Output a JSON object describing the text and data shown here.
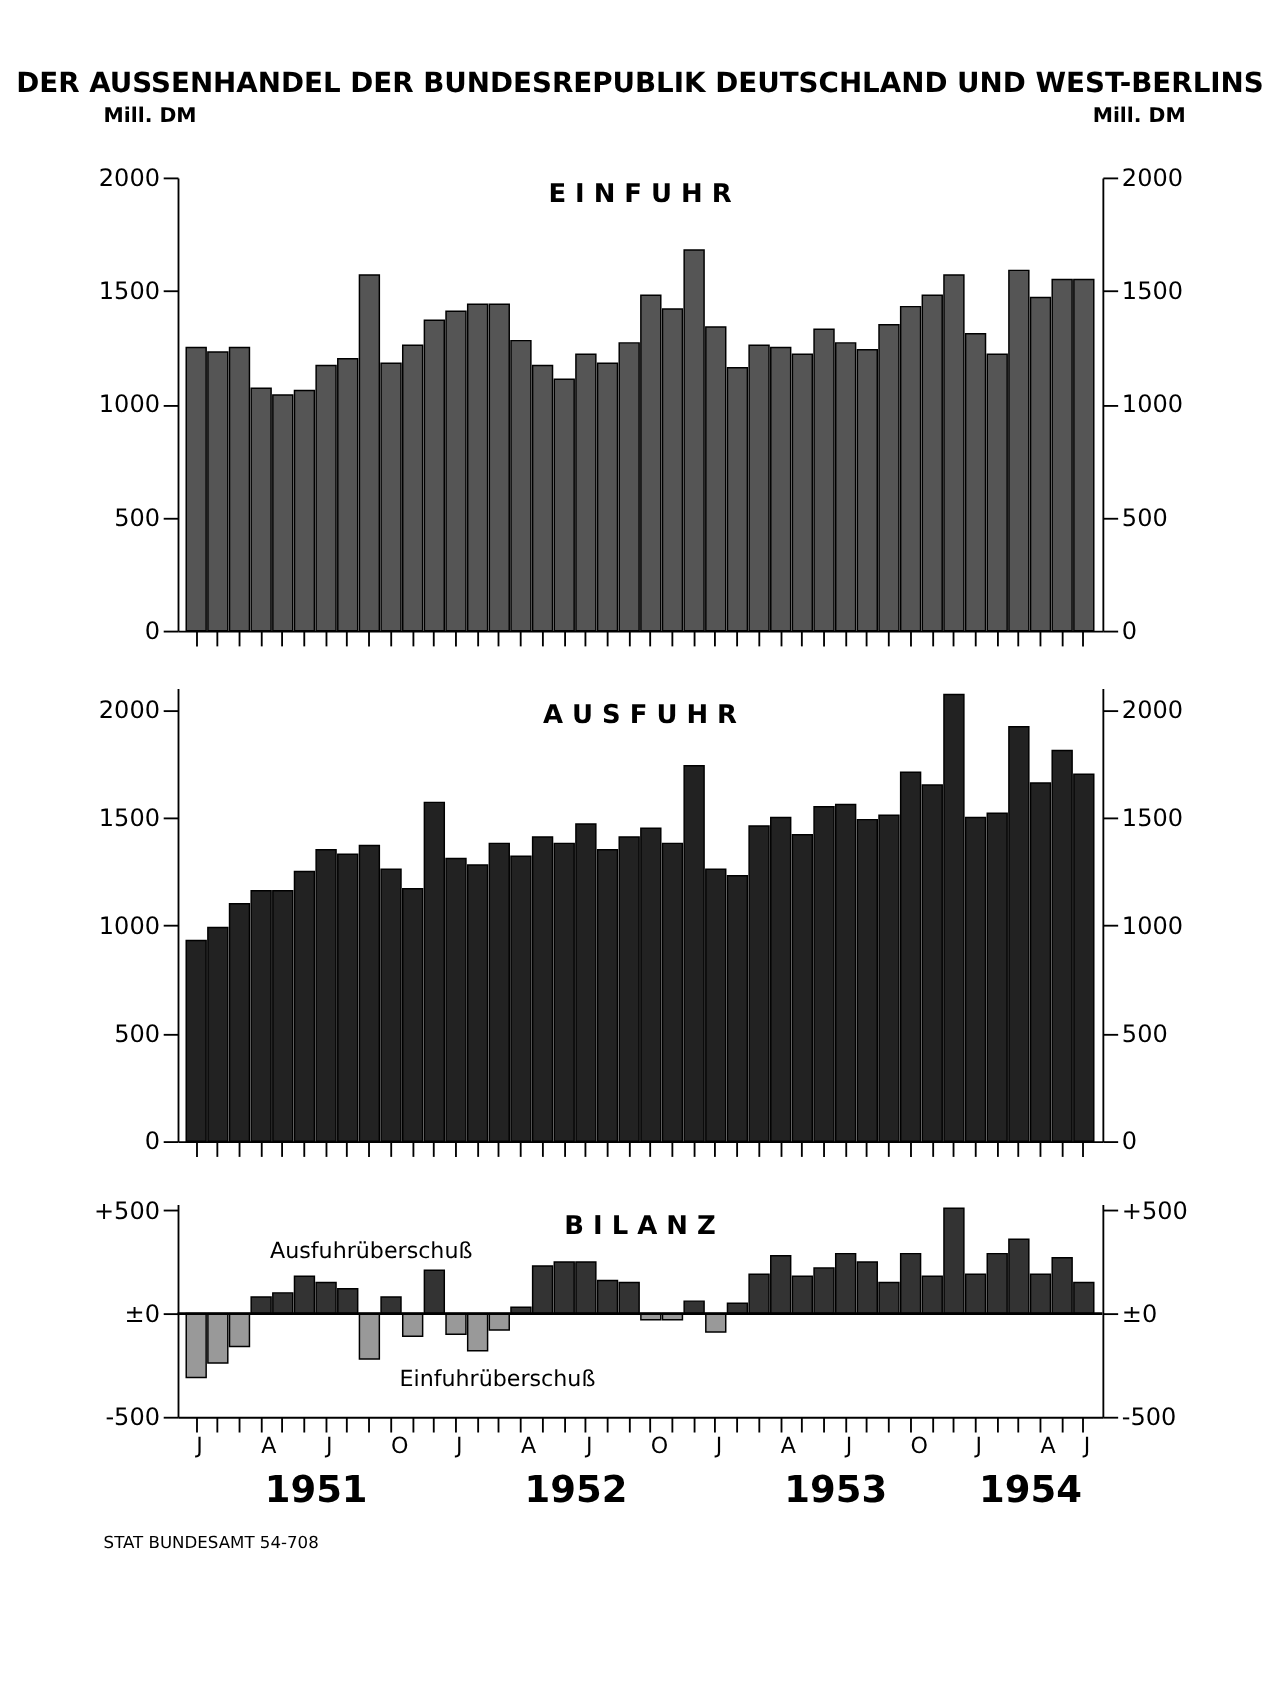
{
  "chart_data": [
    {
      "type": "bar",
      "title": "DER AUSSENHANDEL DER BUNDESREPUBLIK DEUTSCHLAND UND WEST-BERLINS",
      "subtitle": "E I N F U H R",
      "ylabel": "Mill. DM",
      "y2label": "Mill. DM",
      "categories": [
        null,
        null,
        null,
        null,
        null,
        null,
        null,
        null,
        null,
        null,
        null,
        null,
        null,
        null,
        null,
        null,
        null,
        null,
        null,
        null,
        null,
        null,
        null,
        null,
        null,
        null,
        null,
        null,
        null,
        null,
        null,
        null,
        null,
        null,
        null,
        null,
        null,
        null,
        null,
        null,
        null,
        null
      ],
      "series": [
        {
          "color": "#555555",
          "values": [
            1250,
            1230,
            1250,
            1070,
            1040,
            1060,
            1170,
            1200,
            1570,
            1180,
            1260,
            1370,
            1410,
            1440,
            1440,
            1280,
            1170,
            1110,
            1220,
            1180,
            1270,
            1480,
            1420,
            1680,
            1340,
            1160,
            1260,
            1250,
            1220,
            1330,
            1270,
            1240,
            1350,
            1430,
            1480,
            1570,
            1310,
            1220,
            1590,
            1470,
            1550,
            1550
          ]
        }
      ],
      "ylim": [
        0,
        2000
      ],
      "yticks": [
        0,
        500,
        1000,
        1500,
        2000
      ],
      "y2lim": [
        0,
        2000
      ],
      "y2ticks": [
        0,
        500,
        1000,
        1500,
        2000
      ],
      "tick_labels": "y"
    },
    {
      "type": "bar",
      "title": "A U S F U H R",
      "categories": [
        null,
        null,
        null,
        null,
        null,
        null,
        null,
        null,
        null,
        null,
        null,
        null,
        null,
        null,
        null,
        null,
        null,
        null,
        null,
        null,
        null,
        null,
        null,
        null,
        null,
        null,
        null,
        null,
        null,
        null,
        null,
        null,
        null,
        null,
        null,
        null,
        null,
        null,
        null,
        null,
        null,
        null
      ],
      "series": [
        {
          "color": "#222222",
          "values": [
            930,
            990,
            1100,
            1160,
            1160,
            1250,
            1350,
            1330,
            1370,
            1260,
            1170,
            1570,
            1310,
            1280,
            1380,
            1320,
            1410,
            1380,
            1470,
            1350,
            1410,
            1450,
            1380,
            1740,
            1260,
            1230,
            1460,
            1500,
            1420,
            1550,
            1560,
            1490,
            1510,
            1710,
            1650,
            2070,
            1500,
            1520,
            1920,
            1660,
            1810,
            1700
          ]
        }
      ],
      "ylim": [
        0,
        2100
      ],
      "yticks": [
        0,
        500,
        1000,
        1500,
        2000
      ],
      "y2lim": [
        0,
        2100
      ],
      "y2ticks": [
        0,
        500,
        1000,
        1500,
        2000
      ],
      "tick_labels": "y"
    },
    {
      "type": "bar",
      "title": "B I L A N Z",
      "categories": [
        "J",
        null,
        null,
        "A",
        null,
        null,
        "J",
        null,
        null,
        "O",
        null,
        null,
        "J",
        null,
        null,
        "A",
        null,
        null,
        "J",
        null,
        null,
        "O",
        null,
        null,
        "J",
        null,
        null,
        "A",
        null,
        null,
        "J",
        null,
        null,
        "O",
        null,
        null,
        "J",
        null,
        null,
        "A",
        null,
        "J"
      ],
      "series": [
        {
          "values": [
            -310,
            -240,
            -160,
            80,
            100,
            180,
            150,
            120,
            -220,
            80,
            -110,
            210,
            -100,
            -180,
            -80,
            30,
            230,
            250,
            250,
            160,
            150,
            -30,
            -30,
            60,
            -90,
            50,
            190,
            280,
            180,
            220,
            290,
            250,
            150,
            290,
            180,
            510,
            190,
            290,
            360,
            190,
            270,
            150
          ],
          "colors": [
            "#999999",
            "#999999",
            "#999999",
            "#333333",
            "#333333",
            "#333333",
            "#333333",
            "#333333",
            "#999999",
            "#333333",
            "#999999",
            "#333333",
            "#999999",
            "#999999",
            "#999999",
            "#333333",
            "#333333",
            "#333333",
            "#333333",
            "#333333",
            "#333333",
            "#999999",
            "#999999",
            "#333333",
            "#999999",
            "#333333",
            "#333333",
            "#333333",
            "#333333",
            "#333333",
            "#333333",
            "#333333",
            "#333333",
            "#333333",
            "#333333",
            "#333333",
            "#333333",
            "#333333",
            "#333333",
            "#333333",
            "#333333",
            "#333333"
          ]
        }
      ],
      "ylim": [
        -500,
        530
      ],
      "yticks": [
        {
          "value": -500,
          "label": "-500"
        },
        {
          "value": 0,
          "label": "±0"
        },
        {
          "value": 500,
          "label": "+500"
        }
      ],
      "y2lim": [
        -500,
        530
      ],
      "y2ticks": [
        {
          "value": -500,
          "label": "-500"
        },
        {
          "value": 0,
          "label": "±0"
        },
        {
          "value": 500,
          "label": "+500"
        }
      ],
      "ref_lines": [
        {
          "axis": "y",
          "value": 0,
          "color": "#000000"
        }
      ],
      "annotations": [
        "Ausfuhrüberschuß",
        "Einfuhrüberschuß",
        "1951",
        "1952",
        "1953",
        "1954",
        "STAT BUNDESAMT 54-708"
      ]
    }
  ]
}
